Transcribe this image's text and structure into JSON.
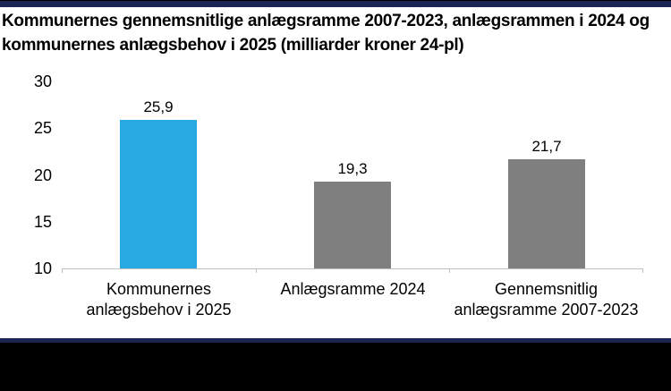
{
  "page": {
    "title_lines": [
      "Kommunernes gennemsnitlige anlægsramme 2007-2023, anlægsrammen i 2024 og",
      "kommunernes anlægsbehov i 2025 (milliarder kroner 24-pl)"
    ]
  },
  "chart_data": {
    "type": "bar",
    "title": "Kommunernes gennemsnitlige anlægsramme 2007-2023, anlægsrammen i 2024 og kommunernes anlægsbehov i 2025 (milliarder kroner 24-pl)",
    "categories": [
      "Kommunernes anlægsbehov i 2025",
      "Anlægsramme 2024",
      "Gennemsnitlig anlægsramme 2007-2023"
    ],
    "category_lines": [
      [
        "Kommunernes",
        "anlægsbehov i 2025"
      ],
      [
        "Anlægsramme 2024"
      ],
      [
        "Gennemsnitlig",
        "anlægsramme 2007-2023"
      ]
    ],
    "values": [
      25.9,
      19.3,
      21.7
    ],
    "value_labels": [
      "25,9",
      "19,3",
      "21,7"
    ],
    "bar_colors": [
      "#29A9E2",
      "#7F7F7F",
      "#7F7F7F"
    ],
    "xlabel": "",
    "ylabel": "",
    "ylim": [
      10,
      30
    ],
    "yticks": [
      10,
      15,
      20,
      25,
      30
    ],
    "grid": false,
    "legend": false
  },
  "colors": {
    "accent_blue": "#29A9E2",
    "bar_gray": "#7F7F7F",
    "border_navy": "#1B2453",
    "axis_line": "#BFBFBF",
    "footer_black": "#000000",
    "background": "#FFFFFF"
  }
}
